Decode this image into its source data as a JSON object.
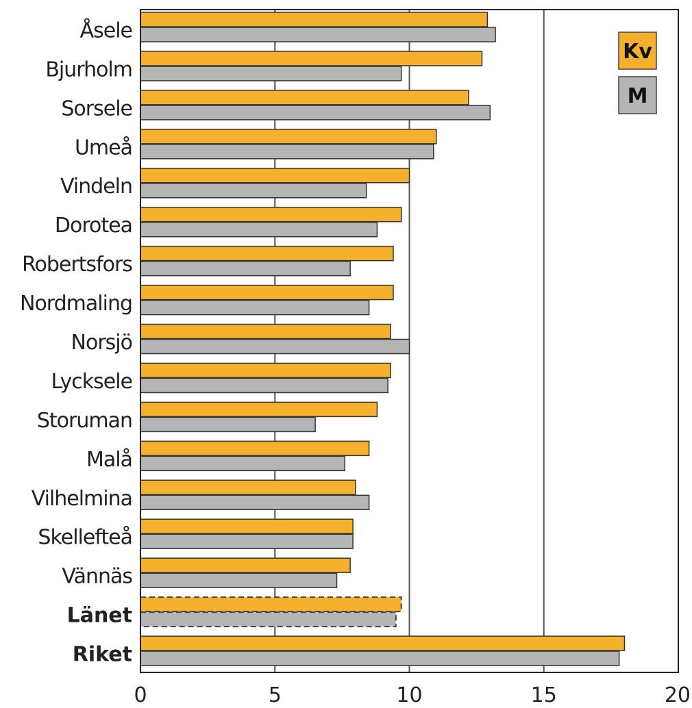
{
  "chart_data": {
    "type": "bar",
    "orientation": "horizontal",
    "categories": [
      "Åsele",
      "Bjurholm",
      "Sorsele",
      "Umeå",
      "Vindeln",
      "Dorotea",
      "Robertsfors",
      "Nordmaling",
      "Norsjö",
      "Lycksele",
      "Storuman",
      "Malå",
      "Vilhelmina",
      "Skellefteå",
      "Vännäs",
      "Länet",
      "Riket"
    ],
    "bold_categories": [
      "Länet",
      "Riket"
    ],
    "dashed_categories": [
      "Länet"
    ],
    "series": [
      {
        "name": "Kv",
        "color": "#f5b02e",
        "values": [
          12.9,
          12.7,
          12.2,
          11.0,
          10.0,
          9.7,
          9.4,
          9.4,
          9.3,
          9.3,
          8.8,
          8.5,
          8.0,
          7.9,
          7.8,
          9.7,
          18.0
        ]
      },
      {
        "name": "M",
        "color": "#b5b5b5",
        "values": [
          13.2,
          9.7,
          13.0,
          10.9,
          8.4,
          8.8,
          7.8,
          8.5,
          10.0,
          9.2,
          6.5,
          7.6,
          8.5,
          7.9,
          7.3,
          9.5,
          17.8
        ]
      }
    ],
    "xlim": [
      0,
      20
    ],
    "xticks": [
      "0",
      "5",
      "10",
      "15",
      "20"
    ],
    "grid": "vertical",
    "legend_position": "top-right",
    "title": "",
    "xlabel": "",
    "ylabel": ""
  }
}
